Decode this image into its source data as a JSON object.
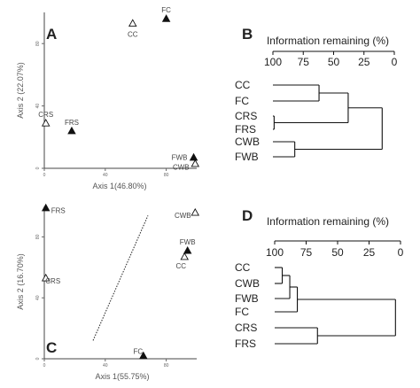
{
  "chart_data": [
    {
      "panel": "A",
      "type": "scatter",
      "xlabel": "Axis 1(46.80%)",
      "ylabel": "Axis 2 (22.07%)",
      "xlim": [
        0,
        100
      ],
      "ylim": [
        0,
        100
      ],
      "xticks": [
        0,
        40,
        80
      ],
      "yticks": [
        0,
        40,
        80
      ],
      "points": [
        {
          "label": "CC",
          "x": 58,
          "y": 93,
          "marker": "open"
        },
        {
          "label": "FC",
          "x": 80,
          "y": 96,
          "marker": "filled"
        },
        {
          "label": "CRS",
          "x": 1,
          "y": 29,
          "marker": "open"
        },
        {
          "label": "FRS",
          "x": 18,
          "y": 24,
          "marker": "filled"
        },
        {
          "label": "FWB",
          "x": 98,
          "y": 7,
          "marker": "filled"
        },
        {
          "label": "CWB",
          "x": 99,
          "y": 3,
          "marker": "open"
        }
      ]
    },
    {
      "panel": "B",
      "type": "dendrogram",
      "title": "Information remaining (%)",
      "ticks": [
        "100",
        "75",
        "50",
        "25",
        "0"
      ],
      "leaves": [
        "CC",
        "FC",
        "CRS",
        "FRS",
        "CWB",
        "FWB"
      ],
      "merges": [
        {
          "a": "CC",
          "b": "FC",
          "height": 62
        },
        {
          "a": "CRS",
          "b": "FRS",
          "height": 99
        },
        {
          "a": "CC-FC",
          "b": "CRS-FRS",
          "height": 38
        },
        {
          "a": "CWB",
          "b": "FWB",
          "height": 82
        },
        {
          "a": "CC-FC-CRS-FRS",
          "b": "CWB-FWB",
          "height": 10
        }
      ]
    },
    {
      "panel": "C",
      "type": "scatter",
      "xlabel": "Axis 1(55.75%)",
      "ylabel": "Axis 2 (16.70%)",
      "xlim": [
        0,
        100
      ],
      "ylim": [
        0,
        100
      ],
      "xticks": [
        0,
        40,
        80
      ],
      "yticks": [
        0,
        40,
        80
      ],
      "points": [
        {
          "label": "FRS",
          "x": 1,
          "y": 99,
          "marker": "filled"
        },
        {
          "label": "CWB",
          "x": 99,
          "y": 96,
          "marker": "open"
        },
        {
          "label": "FWB",
          "x": 94,
          "y": 71,
          "marker": "filled"
        },
        {
          "label": "CC",
          "x": 92,
          "y": 67,
          "marker": "open"
        },
        {
          "label": "CRS",
          "x": 1,
          "y": 53,
          "marker": "open"
        },
        {
          "label": "FC",
          "x": 65,
          "y": 2,
          "marker": "filled"
        }
      ],
      "line": [
        [
          32,
          12
        ],
        [
          68,
          94
        ]
      ]
    },
    {
      "panel": "D",
      "type": "dendrogram",
      "title": "Information remaining (%)",
      "ticks": [
        "100",
        "75",
        "50",
        "25",
        "0"
      ],
      "leaves": [
        "CC",
        "CWB",
        "FWB",
        "FC",
        "CRS",
        "FRS"
      ],
      "merges": [
        {
          "a": "CC",
          "b": "CWB",
          "height": 94
        },
        {
          "a": "CC-CWB",
          "b": "FWB",
          "height": 88
        },
        {
          "a": "CC-CWB-FWB",
          "b": "FC",
          "height": 82
        },
        {
          "a": "CRS",
          "b": "FRS",
          "height": 66
        },
        {
          "a": "CC-CWB-FWB-FC",
          "b": "CRS-FRS",
          "height": 4
        }
      ]
    }
  ]
}
